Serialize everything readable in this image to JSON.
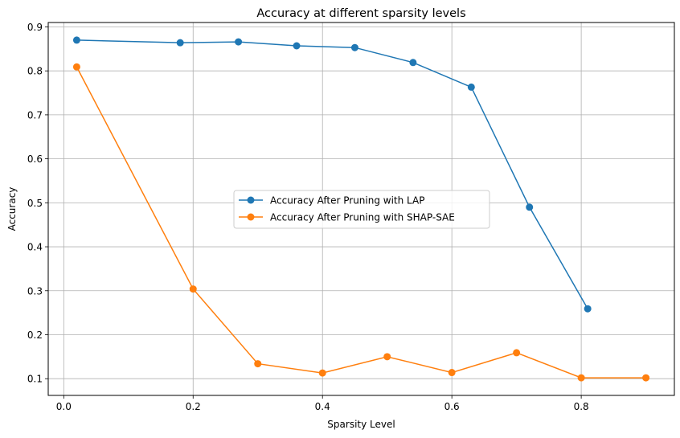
{
  "chart_data": {
    "type": "line",
    "title": "Accuracy at different sparsity levels",
    "xlabel": "Sparsity Level",
    "ylabel": "Accuracy",
    "xlim": [
      -0.024,
      0.944
    ],
    "ylim": [
      0.062,
      0.91
    ],
    "xticks": [
      0.0,
      0.2,
      0.4,
      0.6,
      0.8
    ],
    "xtick_labels": [
      "0.0",
      "0.2",
      "0.4",
      "0.6",
      "0.8"
    ],
    "yticks": [
      0.1,
      0.2,
      0.3,
      0.4,
      0.5,
      0.6,
      0.7,
      0.8,
      0.9
    ],
    "ytick_labels": [
      "0.1",
      "0.2",
      "0.3",
      "0.4",
      "0.5",
      "0.6",
      "0.7",
      "0.8",
      "0.9"
    ],
    "grid": true,
    "legend_position": "center",
    "series": [
      {
        "name": "Accuracy After Pruning with LAP",
        "color": "#1f77b4",
        "marker": "circle",
        "x": [
          0.02,
          0.18,
          0.27,
          0.36,
          0.45,
          0.54,
          0.63,
          0.72,
          0.81
        ],
        "y": [
          0.87,
          0.864,
          0.866,
          0.857,
          0.853,
          0.819,
          0.763,
          0.49,
          0.259
        ]
      },
      {
        "name": "Accuracy After Pruning with SHAP-SAE",
        "color": "#ff7f0e",
        "marker": "circle",
        "x": [
          0.02,
          0.2,
          0.3,
          0.4,
          0.5,
          0.6,
          0.7,
          0.8,
          0.9
        ],
        "y": [
          0.809,
          0.304,
          0.134,
          0.113,
          0.15,
          0.114,
          0.159,
          0.102,
          0.102
        ]
      }
    ]
  }
}
